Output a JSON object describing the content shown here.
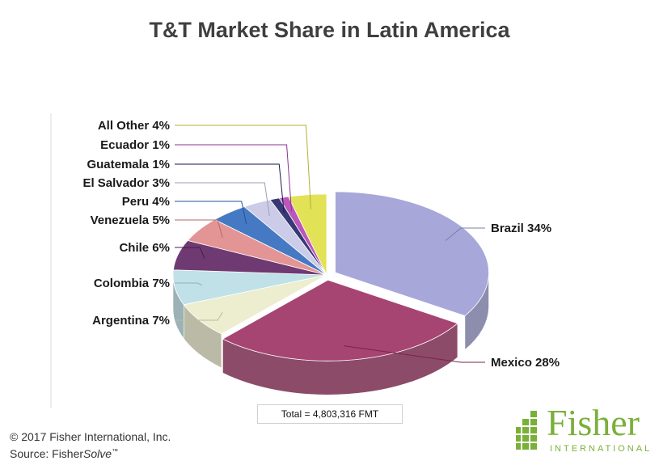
{
  "chart_data": {
    "type": "pie",
    "title": "T&T Market Share in Latin America",
    "unit": "%",
    "slices": [
      {
        "label": "Brazil",
        "value": 34,
        "display": "Brazil 34%",
        "color": "#9b9bd4"
      },
      {
        "label": "Mexico",
        "value": 28,
        "display": "Mexico 28%",
        "color": "#9a2a5e"
      },
      {
        "label": "Argentina",
        "value": 7,
        "display": "Argentina 7%",
        "color": "#ebebc8"
      },
      {
        "label": "Colombia",
        "value": 7,
        "display": "Colombia 7%",
        "color": "#b6dde4"
      },
      {
        "label": "Chile",
        "value": 6,
        "display": "Chile 6%",
        "color": "#5b1f5e"
      },
      {
        "label": "Venezuela",
        "value": 5,
        "display": "Venezuela 5%",
        "color": "#df8585"
      },
      {
        "label": "Peru",
        "value": 4,
        "display": "Peru 4%",
        "color": "#2c66bb"
      },
      {
        "label": "El Salvador",
        "value": 3,
        "display": "El Salvador 3%",
        "color": "#c5c5e5"
      },
      {
        "label": "Guatemala",
        "value": 1,
        "display": "Guatemala 1%",
        "color": "#1d1d62"
      },
      {
        "label": "Ecuador",
        "value": 1,
        "display": "Ecuador 1%",
        "color": "#b23fb2"
      },
      {
        "label": "All Other",
        "value": 4,
        "display": "All Other 4%",
        "color": "#dede40"
      }
    ],
    "total_label": "Total = 4,803,316  FMT"
  },
  "footer": {
    "copyright": "© 2017 Fisher International, Inc.",
    "source_prefix": "Source: Fisher",
    "source_italic": "Solve",
    "source_tm": "™"
  },
  "logo": {
    "name": "Fisher",
    "sub": "INTERNATIONAL",
    "color": "#7ab03a"
  }
}
